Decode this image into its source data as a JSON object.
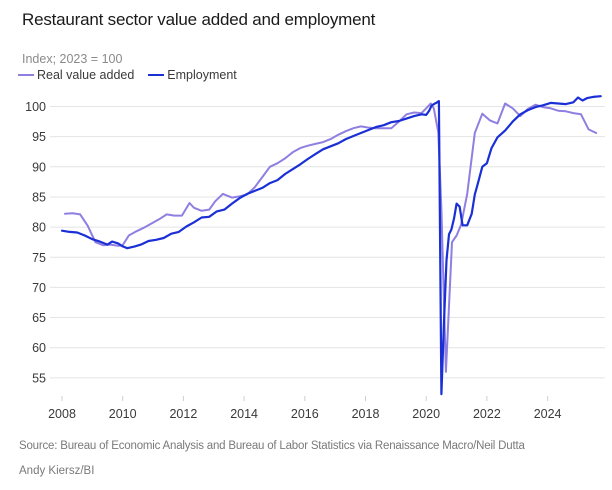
{
  "chart_data": {
    "type": "line",
    "title": "Restaurant sector value added and employment",
    "subtitle": "Index; 2023 = 100",
    "xlabel": "",
    "ylabel": "Index; 2023 = 100",
    "xlim": [
      2008,
      2025.9
    ],
    "ylim": [
      51.5,
      102
    ],
    "yticks": [
      55,
      60,
      65,
      70,
      75,
      80,
      85,
      90,
      95,
      100
    ],
    "xticks": [
      2008,
      2010,
      2012,
      2014,
      2016,
      2018,
      2020,
      2022,
      2024
    ],
    "grid": true,
    "legend": "top-left",
    "series": [
      {
        "name": "Real value added",
        "color": "#8f7fe0",
        "x": [
          2008.1,
          2008.35,
          2008.6,
          2008.85,
          2009.1,
          2009.35,
          2009.6,
          2009.85,
          2010.0,
          2010.2,
          2010.45,
          2010.7,
          2010.95,
          2011.2,
          2011.45,
          2011.7,
          2011.95,
          2012.2,
          2012.35,
          2012.6,
          2012.85,
          2013.05,
          2013.3,
          2013.6,
          2013.85,
          2014.1,
          2014.35,
          2014.6,
          2014.85,
          2015.1,
          2015.35,
          2015.6,
          2015.85,
          2016.1,
          2016.35,
          2016.6,
          2016.85,
          2017.1,
          2017.35,
          2017.6,
          2017.85,
          2018.1,
          2018.35,
          2018.6,
          2018.85,
          2019.1,
          2019.35,
          2019.6,
          2019.85,
          2020.0,
          2020.15,
          2020.25,
          2020.4,
          2020.5,
          2020.65,
          2020.85,
          2021.0,
          2021.15,
          2021.35,
          2021.6,
          2021.85,
          2022.1,
          2022.35,
          2022.6,
          2022.85,
          2023.1,
          2023.35,
          2023.6,
          2023.85,
          2024.1,
          2024.35,
          2024.6,
          2024.85,
          2025.1,
          2025.35,
          2025.6
        ],
        "values": [
          82.2,
          82.3,
          82.1,
          80.2,
          77.5,
          77.0,
          77.1,
          76.9,
          77.0,
          78.6,
          79.3,
          79.9,
          80.6,
          81.3,
          82.1,
          81.9,
          81.9,
          84.0,
          83.2,
          82.7,
          82.9,
          84.3,
          85.5,
          84.9,
          85.1,
          85.4,
          86.6,
          88.3,
          90.0,
          90.6,
          91.4,
          92.4,
          93.1,
          93.5,
          93.8,
          94.1,
          94.6,
          95.3,
          95.9,
          96.4,
          96.7,
          96.5,
          96.4,
          96.4,
          96.4,
          97.5,
          98.7,
          99.0,
          98.9,
          99.7,
          100.5,
          99.7,
          95.7,
          83.0,
          56.0,
          77.5,
          78.6,
          80.4,
          85.5,
          95.6,
          98.8,
          97.7,
          97.2,
          100.5,
          99.7,
          98.4,
          99.6,
          100.3,
          99.9,
          99.7,
          99.3,
          99.2,
          98.9,
          98.7,
          96.2,
          95.6
        ]
      },
      {
        "name": "Employment",
        "color": "#1a2fd6",
        "x": [
          2008.0,
          2008.25,
          2008.5,
          2008.75,
          2009.0,
          2009.25,
          2009.5,
          2009.65,
          2009.85,
          2010.0,
          2010.15,
          2010.4,
          2010.6,
          2010.85,
          2011.1,
          2011.35,
          2011.6,
          2011.85,
          2012.1,
          2012.35,
          2012.6,
          2012.85,
          2013.1,
          2013.35,
          2013.6,
          2013.85,
          2014.1,
          2014.35,
          2014.6,
          2014.85,
          2015.1,
          2015.35,
          2015.6,
          2015.85,
          2016.1,
          2016.35,
          2016.6,
          2016.85,
          2017.1,
          2017.35,
          2017.6,
          2017.85,
          2018.1,
          2018.35,
          2018.6,
          2018.85,
          2019.1,
          2019.35,
          2019.6,
          2019.85,
          2020.0,
          2020.1,
          2020.17,
          2020.25,
          2020.33,
          2020.42,
          2020.5,
          2020.58,
          2020.67,
          2020.75,
          2020.83,
          2020.92,
          2021.0,
          2021.1,
          2021.2,
          2021.35,
          2021.5,
          2021.6,
          2021.7,
          2021.85,
          2022.0,
          2022.15,
          2022.35,
          2022.6,
          2022.85,
          2023.1,
          2023.35,
          2023.6,
          2023.85,
          2024.1,
          2024.35,
          2024.6,
          2024.85,
          2025.0,
          2025.15,
          2025.3,
          2025.5,
          2025.75
        ],
        "values": [
          79.4,
          79.2,
          79.1,
          78.6,
          78.0,
          77.6,
          77.1,
          77.6,
          77.3,
          76.8,
          76.5,
          76.8,
          77.1,
          77.7,
          77.9,
          78.2,
          78.9,
          79.2,
          80.1,
          80.8,
          81.6,
          81.7,
          82.6,
          82.9,
          83.9,
          84.8,
          85.5,
          86.0,
          86.5,
          87.3,
          87.8,
          88.8,
          89.6,
          90.4,
          91.3,
          92.1,
          92.9,
          93.4,
          93.9,
          94.6,
          95.1,
          95.6,
          96.1,
          96.6,
          96.9,
          97.4,
          97.6,
          98.0,
          98.4,
          98.7,
          98.6,
          99.3,
          100.1,
          100.4,
          100.6,
          100.9,
          52.3,
          63.5,
          74.5,
          78.8,
          79.6,
          81.5,
          83.9,
          83.4,
          80.3,
          80.3,
          82.2,
          85.4,
          87.2,
          90.0,
          90.6,
          93.1,
          94.9,
          96.0,
          97.5,
          98.7,
          99.4,
          99.9,
          100.2,
          100.6,
          100.5,
          100.4,
          100.7,
          101.5,
          101.0,
          101.4,
          101.6,
          101.7
        ]
      }
    ]
  },
  "header": {
    "title": "Restaurant sector value added and employment",
    "subtitle": "Index; 2023 = 100"
  },
  "legend": {
    "items": [
      {
        "label": "Real value added",
        "color": "#8f7fe0"
      },
      {
        "label": "Employment",
        "color": "#1a2fd6"
      }
    ]
  },
  "footer": {
    "source": "Source: Bureau of Economic Analysis and Bureau of Labor Statistics via Renaissance Macro/Neil Dutta",
    "credit": "Andy Kiersz/BI"
  }
}
